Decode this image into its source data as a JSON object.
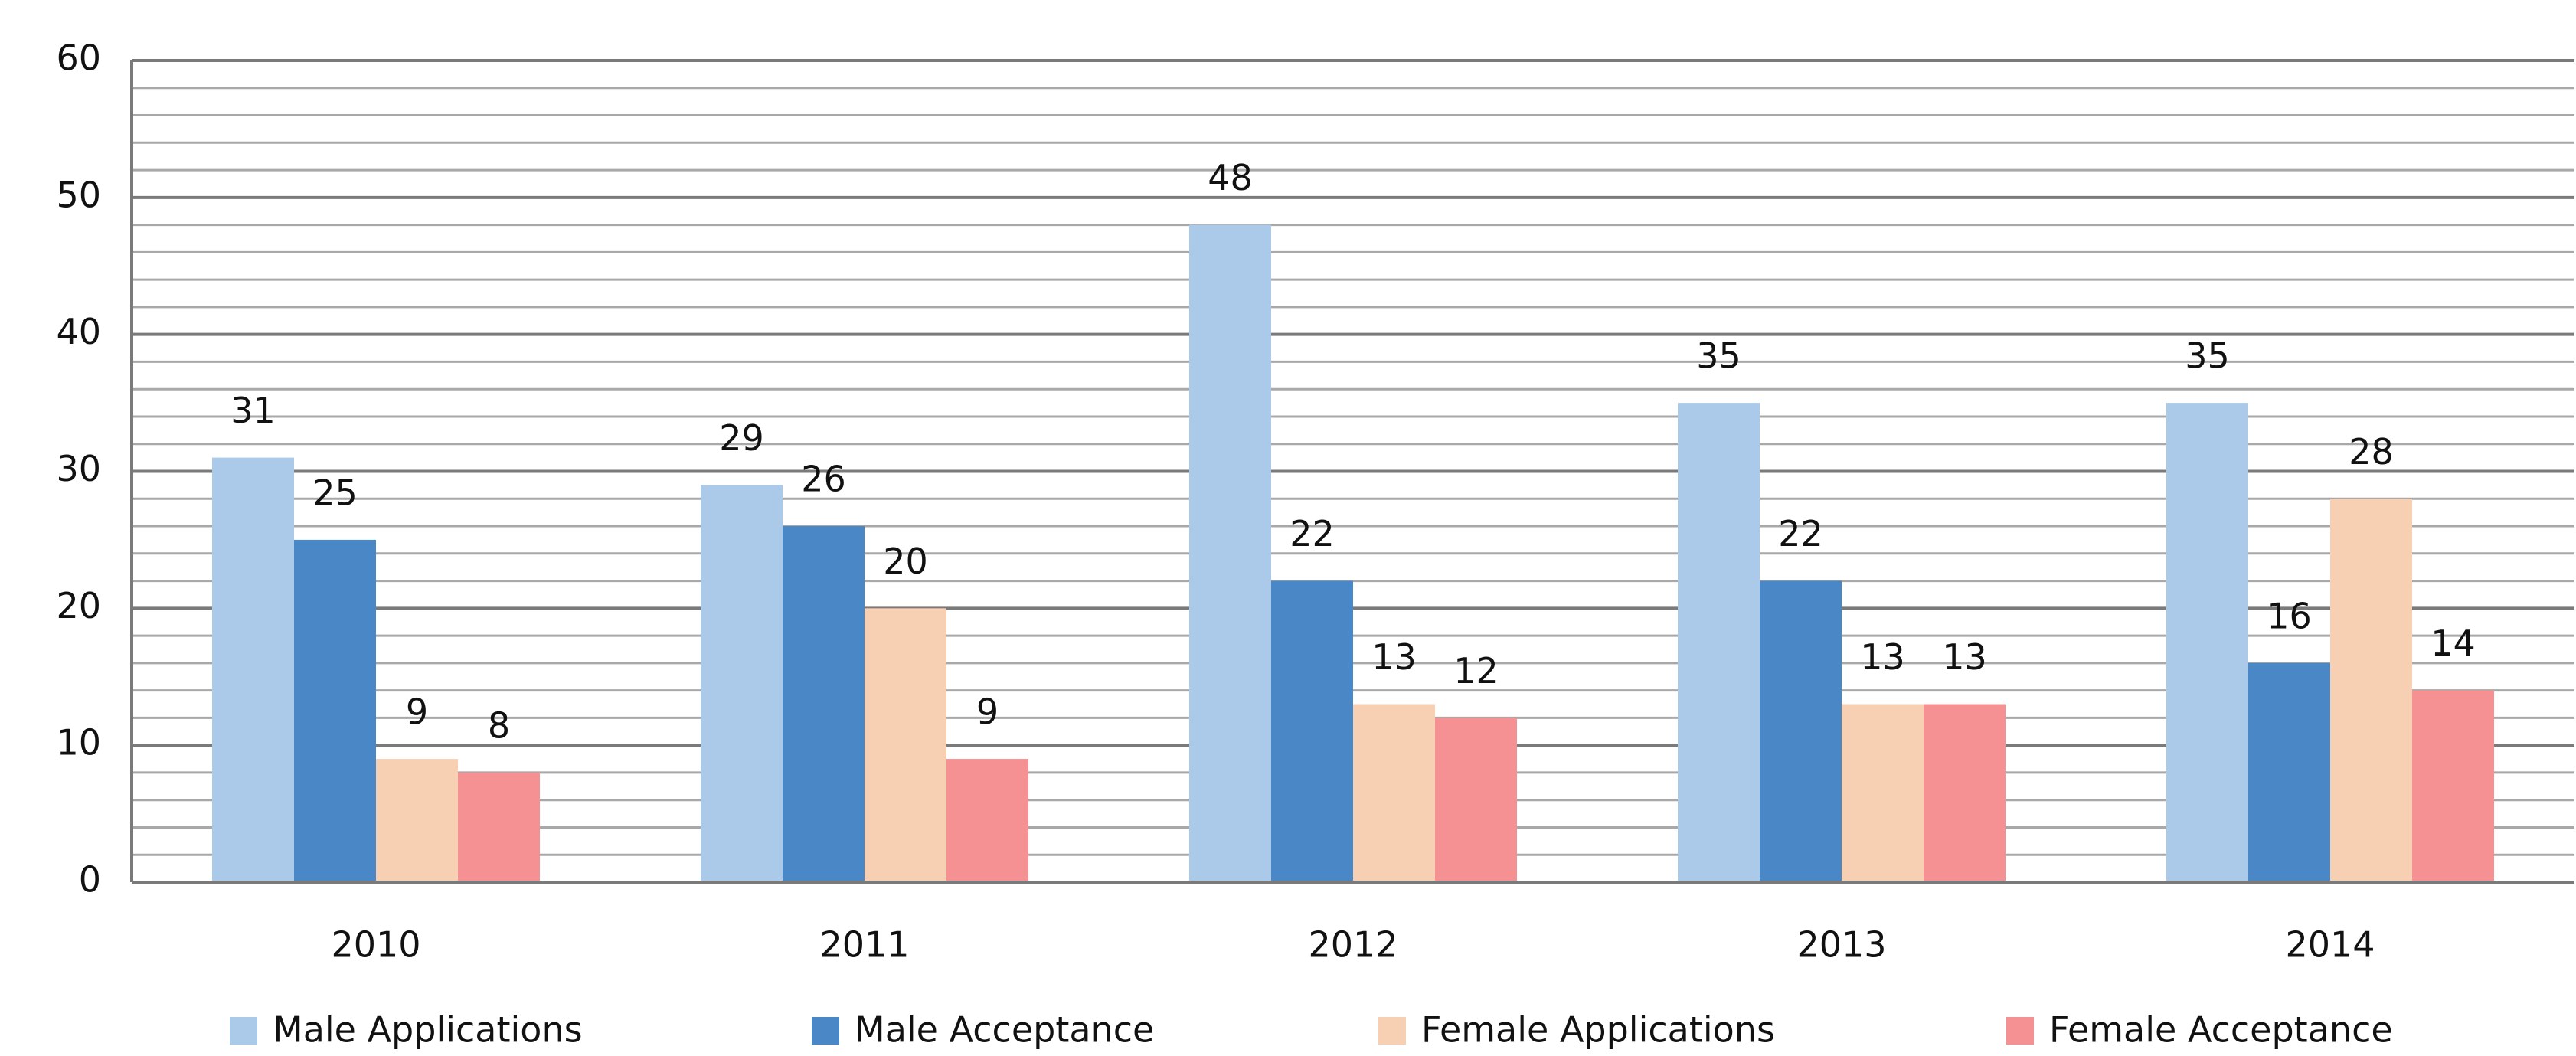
{
  "chart_data": {
    "type": "bar",
    "categories": [
      "2010",
      "2011",
      "2012",
      "2013",
      "2014"
    ],
    "series": [
      {
        "name": "Male Applications",
        "color": "#abcae9",
        "values": [
          31,
          29,
          48,
          35,
          35
        ]
      },
      {
        "name": "Male Acceptance",
        "color": "#4a87c6",
        "values": [
          25,
          26,
          22,
          22,
          16
        ]
      },
      {
        "name": "Female Applications",
        "color": "#f7d0b3",
        "values": [
          9,
          20,
          13,
          13,
          28
        ]
      },
      {
        "name": "Female Acceptance",
        "color": "#f59192",
        "values": [
          8,
          9,
          12,
          13,
          14
        ]
      }
    ],
    "ylim": [
      0,
      60
    ],
    "yticks": [
      0,
      10,
      20,
      30,
      40,
      50,
      60
    ],
    "minor_yticks": [
      2,
      4,
      6,
      8,
      12,
      14,
      16,
      18,
      22,
      24,
      26,
      28,
      32,
      34,
      36,
      38,
      42,
      44,
      46,
      48,
      52,
      54,
      56,
      58
    ],
    "grid": true,
    "legend": "bottom"
  }
}
